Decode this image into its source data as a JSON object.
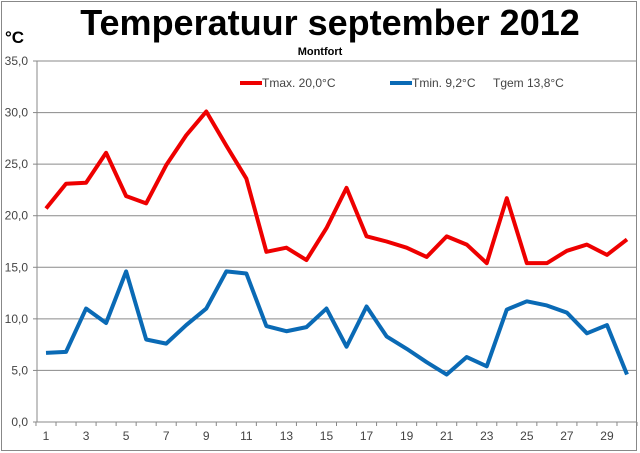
{
  "chart_data": {
    "type": "line",
    "title": "Temperatuur september 2012",
    "subtitle": "Montfort",
    "ylabel": "°C",
    "xlabel": "",
    "ylim": [
      0,
      35
    ],
    "yticks": [
      "0,0",
      "5,0",
      "10,0",
      "15,0",
      "20,0",
      "25,0",
      "30,0",
      "35,0"
    ],
    "x": [
      1,
      2,
      3,
      4,
      5,
      6,
      7,
      8,
      9,
      10,
      11,
      12,
      13,
      14,
      15,
      16,
      17,
      18,
      19,
      20,
      21,
      22,
      23,
      24,
      25,
      26,
      27,
      28,
      29,
      30
    ],
    "xtick_labels": [
      "1",
      "3",
      "5",
      "7",
      "9",
      "11",
      "13",
      "15",
      "17",
      "19",
      "21",
      "23",
      "25",
      "27",
      "29"
    ],
    "grid": true,
    "legend_position": "top",
    "series": [
      {
        "name": "Tmax. 20,0°C",
        "color": "#ee0000",
        "values": [
          20.7,
          23.1,
          23.2,
          26.1,
          21.9,
          21.2,
          24.9,
          27.8,
          30.1,
          26.8,
          23.6,
          16.5,
          16.9,
          15.7,
          18.8,
          22.7,
          18.0,
          17.5,
          16.9,
          16.0,
          18.0,
          17.2,
          15.4,
          21.7,
          15.4,
          15.4,
          16.6,
          17.2,
          16.2,
          17.7
        ]
      },
      {
        "name": "Tmin. 9,2°C",
        "color": "#0a6ab5",
        "values": [
          6.7,
          6.8,
          11.0,
          9.6,
          14.6,
          8.0,
          7.6,
          9.4,
          11.0,
          14.6,
          14.4,
          9.3,
          8.8,
          9.2,
          11.0,
          7.3,
          11.2,
          8.3,
          7.1,
          5.8,
          4.6,
          6.3,
          5.4,
          10.9,
          11.7,
          11.3,
          10.6,
          8.6,
          9.4,
          4.6
        ]
      }
    ],
    "annotation": "Tgem 13,8°C"
  }
}
